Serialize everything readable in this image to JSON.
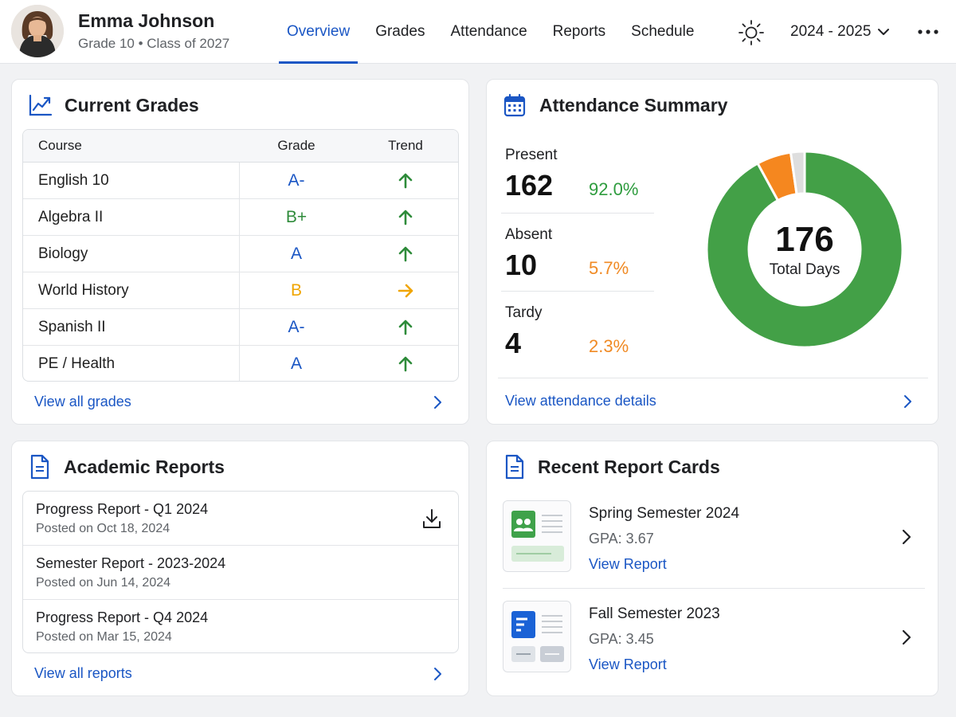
{
  "header": {
    "student_name": "Emma Johnson",
    "student_subtitle": "Grade 10 • Class of 2027",
    "tabs": [
      {
        "label": "Overview",
        "active": true
      },
      {
        "label": "Grades",
        "active": false
      },
      {
        "label": "Attendance",
        "active": false
      },
      {
        "label": "Reports",
        "active": false
      },
      {
        "label": "Schedule",
        "active": false
      }
    ],
    "theme_icon": "sun-icon",
    "school_year": "2024 - 2025",
    "more_icon": "more-horizontal-icon"
  },
  "grades": {
    "title": "Current Grades",
    "icon": "trend-chart-icon",
    "columns": {
      "course": "Course",
      "grade": "Grade",
      "trend": "Trend"
    },
    "rows": [
      {
        "course": "English 10",
        "grade": "A-",
        "grade_color": "#1a56c4",
        "trend": "up"
      },
      {
        "course": "Algebra II",
        "grade": "B+",
        "grade_color": "#2e8b3a",
        "trend": "up"
      },
      {
        "course": "Biology",
        "grade": "A",
        "grade_color": "#1a56c4",
        "trend": "up"
      },
      {
        "course": "World History",
        "grade": "B",
        "grade_color": "#f0a500",
        "trend": "right"
      },
      {
        "course": "Spanish II",
        "grade": "A-",
        "grade_color": "#1a56c4",
        "trend": "up"
      },
      {
        "course": "PE / Health",
        "grade": "A",
        "grade_color": "#1a56c4",
        "trend": "up"
      }
    ],
    "footer_link": "View all grades"
  },
  "attendance": {
    "title": "Attendance Summary",
    "icon": "calendar-icon",
    "present": {
      "label": "Present",
      "value": "162",
      "pct": "92.0%",
      "color": "#2e9c3e"
    },
    "absent": {
      "label": "Absent",
      "value": "10",
      "pct": "5.7%",
      "color": "#f08a24"
    },
    "tardy": {
      "label": "Tardy",
      "value": "4",
      "pct": "2.3%",
      "color": "#f08a24"
    },
    "total_days": "176",
    "total_label": "Total Days",
    "donut": [
      {
        "name": "Present",
        "value": 162,
        "color": "#43a047"
      },
      {
        "name": "Absent",
        "value": 10,
        "color": "#f5871f"
      },
      {
        "name": "Tardy",
        "value": 4,
        "color": "#dedede"
      }
    ],
    "footer_link": "View attendance details"
  },
  "reports": {
    "title": "Academic Reports",
    "icon": "document-icon",
    "items": [
      {
        "title": "Progress Report - Q1 2024",
        "date": "Posted on Oct 18, 2024",
        "download": true
      },
      {
        "title": "Semester Report - 2023-2024",
        "date": "Posted on Jun 14, 2024",
        "download": false
      },
      {
        "title": "Progress Report - Q4 2024",
        "date": "Posted on Mar 15, 2024",
        "download": false
      }
    ],
    "footer_link": "View all reports"
  },
  "report_cards": {
    "title": "Recent Report Cards",
    "icon": "document-icon",
    "items": [
      {
        "title": "Spring Semester 2024",
        "gpa": "GPA: 3.67",
        "link": "View Report",
        "thumb_color": "#3fa24a"
      },
      {
        "title": "Fall Semester 2023",
        "gpa": "GPA: 3.45",
        "link": "View Report",
        "thumb_color": "#1a62d6"
      }
    ]
  }
}
